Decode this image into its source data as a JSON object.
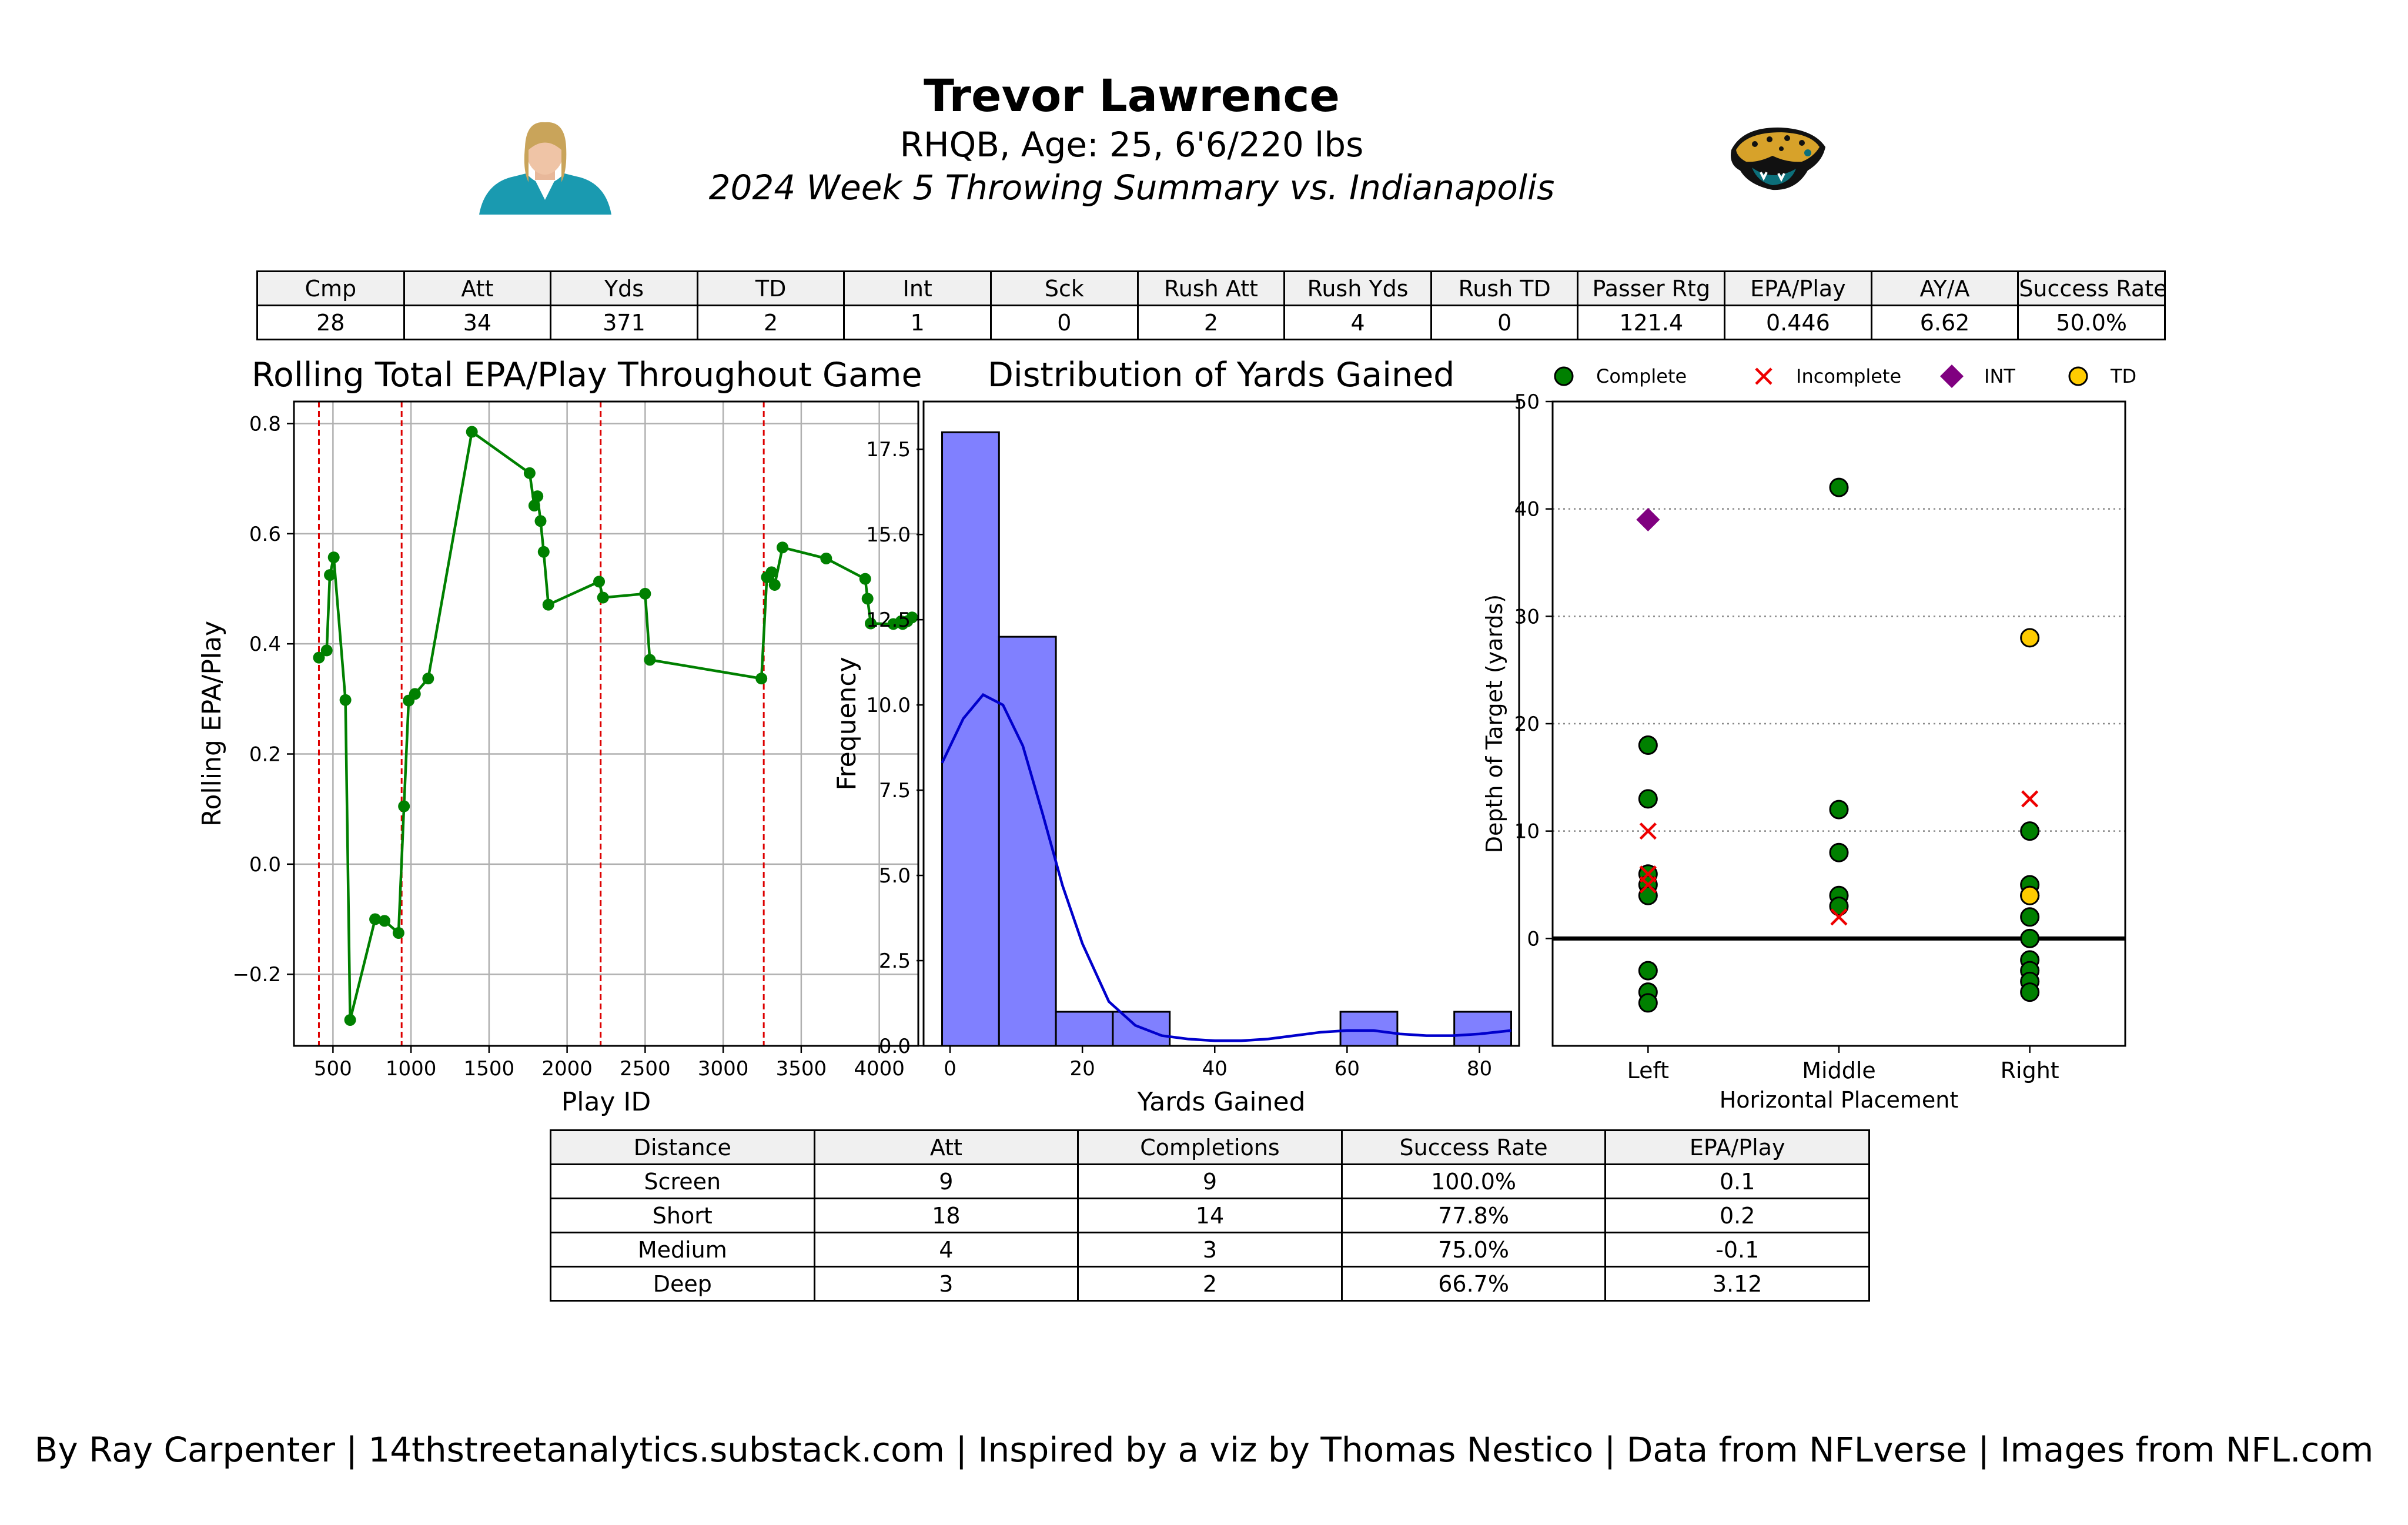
{
  "header": {
    "player_name": "Trevor Lawrence",
    "subtitle": "RHQB, Age: 25, 6'6/220 lbs",
    "game": "2024 Week 5 Throwing Summary vs. Indianapolis"
  },
  "summary_table": {
    "headers": [
      "Cmp",
      "Att",
      "Yds",
      "TD",
      "Int",
      "Sck",
      "Rush Att",
      "Rush Yds",
      "Rush TD",
      "Passer Rtg",
      "EPA/Play",
      "AY/A",
      "Success Rate"
    ],
    "values": [
      "28",
      "34",
      "371",
      "2",
      "1",
      "0",
      "2",
      "4",
      "0",
      "121.4",
      "0.446",
      "6.62",
      "50.0%"
    ]
  },
  "distance_table": {
    "headers": [
      "Distance",
      "Att",
      "Completions",
      "Success Rate",
      "EPA/Play"
    ],
    "rows": [
      [
        "Screen",
        "9",
        "9",
        "100.0%",
        "0.1"
      ],
      [
        "Short",
        "18",
        "14",
        "77.8%",
        "0.2"
      ],
      [
        "Medium",
        "4",
        "3",
        "75.0%",
        "-0.1"
      ],
      [
        "Deep",
        "3",
        "2",
        "66.7%",
        "3.12"
      ]
    ]
  },
  "footer": "By Ray Carpenter | 14thstreetanalytics.substack.com | Inspired by a viz by Thomas Nestico | Data from NFLverse | Images from NFL.com",
  "colors": {
    "line": "#008000",
    "marker": "#008000",
    "drive_line": "#dd0000",
    "hist_fill": "#8080ff",
    "kde": "#0000cc",
    "complete": "#008000",
    "incomplete": "#ee0000",
    "int": "#800080",
    "td": "#ffcc00"
  },
  "chart_data": [
    {
      "type": "line",
      "title": "Rolling Total EPA/Play Throughout Game",
      "xlabel": "Play ID",
      "ylabel": "Rolling EPA/Play",
      "xlim": [
        250,
        4250
      ],
      "ylim": [
        -0.33,
        0.84
      ],
      "xticks": [
        500,
        1000,
        1500,
        2000,
        2500,
        3000,
        3500,
        4000
      ],
      "yticks": [
        -0.2,
        0.0,
        0.2,
        0.4,
        0.6,
        0.8
      ],
      "ytick_labels": [
        "−0.2",
        "0.0",
        "0.2",
        "0.4",
        "0.6",
        "0.8"
      ],
      "grid": true,
      "drive_markers": [
        410,
        940,
        2215,
        3260
      ],
      "x": [
        410,
        460,
        480,
        505,
        580,
        610,
        770,
        830,
        920,
        955,
        985,
        1025,
        1110,
        1390,
        1760,
        1790,
        1810,
        1830,
        1850,
        1880,
        2205,
        2230,
        2500,
        2530,
        3245,
        3280,
        3310,
        3330,
        3380,
        3660,
        3910,
        3925,
        3945,
        4090,
        4140,
        4150,
        4180,
        4210
      ],
      "y": [
        0.375,
        0.388,
        0.525,
        0.557,
        0.298,
        -0.283,
        -0.1,
        -0.103,
        -0.125,
        0.105,
        0.297,
        0.309,
        0.337,
        0.785,
        0.71,
        0.651,
        0.668,
        0.623,
        0.567,
        0.471,
        0.513,
        0.484,
        0.491,
        0.371,
        0.337,
        0.521,
        0.53,
        0.507,
        0.575,
        0.555,
        0.518,
        0.482,
        0.437,
        0.436,
        0.441,
        0.436,
        0.441,
        0.448
      ]
    },
    {
      "type": "bar",
      "title": "Distribution of Yards Gained",
      "xlabel": "Yards Gained",
      "ylabel": "Frequency",
      "xlim": [
        -4,
        86
      ],
      "ylim": [
        0,
        18.9
      ],
      "xticks": [
        0,
        20,
        40,
        60,
        80
      ],
      "yticks": [
        0.0,
        2.5,
        5.0,
        7.5,
        10.0,
        12.5,
        15.0,
        17.5
      ],
      "ytick_labels": [
        "0.0",
        "2.5",
        "5.0",
        "7.5",
        "10.0",
        "12.5",
        "15.0",
        "17.5"
      ],
      "bin_edges": [
        -1.2,
        7.4,
        16.0,
        24.6,
        33.2,
        41.8,
        50.4,
        59.0,
        67.6,
        76.2,
        84.8
      ],
      "values": [
        18,
        12,
        1,
        1,
        0,
        0,
        0,
        1,
        0,
        1
      ],
      "kde_x": [
        -1.2,
        2,
        5,
        8,
        11,
        14,
        17,
        20,
        24,
        28,
        32,
        36,
        40,
        44,
        48,
        52,
        56,
        60,
        64,
        68,
        72,
        76,
        80,
        84.8
      ],
      "kde_y": [
        8.3,
        9.6,
        10.3,
        10.0,
        8.8,
        6.8,
        4.7,
        3.0,
        1.3,
        0.6,
        0.3,
        0.2,
        0.15,
        0.15,
        0.2,
        0.3,
        0.4,
        0.45,
        0.45,
        0.35,
        0.3,
        0.3,
        0.35,
        0.45
      ]
    },
    {
      "type": "scatter",
      "xlabel": "Horizontal Placement",
      "ylabel": "Depth of Target (yards)",
      "categories": [
        "Left",
        "Middle",
        "Right"
      ],
      "xlim": [
        -0.5,
        2.5
      ],
      "ylim": [
        -10,
        50
      ],
      "yticks": [
        0,
        10,
        20,
        30,
        40,
        50
      ],
      "grid": "horizontal-dotted",
      "legend": "top",
      "series": [
        {
          "name": "Complete",
          "marker": "circle",
          "points": [
            [
              0,
              18
            ],
            [
              0,
              13
            ],
            [
              0,
              6
            ],
            [
              0,
              5
            ],
            [
              0,
              4
            ],
            [
              0,
              -3
            ],
            [
              0,
              -5
            ],
            [
              0,
              -6
            ],
            [
              1,
              42
            ],
            [
              1,
              12
            ],
            [
              1,
              8
            ],
            [
              1,
              4
            ],
            [
              1,
              3
            ],
            [
              2,
              10
            ],
            [
              2,
              5
            ],
            [
              2,
              4
            ],
            [
              2,
              2
            ],
            [
              2,
              0
            ],
            [
              2,
              -2
            ],
            [
              2,
              -3
            ],
            [
              2,
              -4
            ],
            [
              2,
              -5
            ]
          ]
        },
        {
          "name": "Incomplete",
          "marker": "x",
          "points": [
            [
              0,
              10
            ],
            [
              0,
              6
            ],
            [
              0,
              5
            ],
            [
              1,
              2
            ],
            [
              2,
              13
            ]
          ]
        },
        {
          "name": "INT",
          "marker": "diamond",
          "points": [
            [
              0,
              39
            ]
          ]
        },
        {
          "name": "TD",
          "marker": "circle",
          "points": [
            [
              2,
              28
            ],
            [
              2,
              4
            ]
          ]
        }
      ]
    }
  ]
}
